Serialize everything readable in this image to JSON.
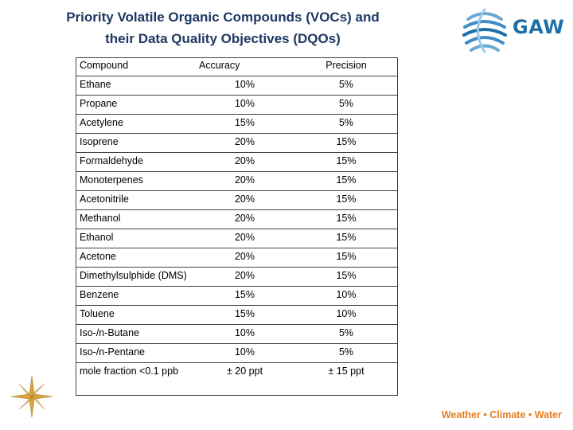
{
  "slide": {
    "title_line1": "Priority Volatile Organic Compounds (VOCs) and",
    "title_line2": "their Data Quality Objectives (DQOs)",
    "logo_text": "GAW",
    "footer": "Weather • Climate • Water",
    "colors": {
      "title": "#1f3864",
      "logo_blue": "#1e6fa8",
      "footer_orange": "#e67e22",
      "star_gold": "#d9a441"
    },
    "icons": [
      "gaw-logo-icon",
      "compass-star-icon"
    ]
  },
  "table": {
    "headers": {
      "compound": "Compound",
      "accuracy": "Accuracy",
      "precision": "Precision"
    },
    "rows": [
      {
        "compound": "Ethane",
        "accuracy": "10%",
        "precision": "5%"
      },
      {
        "compound": "Propane",
        "accuracy": "10%",
        "precision": "5%"
      },
      {
        "compound": "Acetylene",
        "accuracy": "15%",
        "precision": "5%"
      },
      {
        "compound": "Isoprene",
        "accuracy": "20%",
        "precision": "15%"
      },
      {
        "compound": "Formaldehyde",
        "accuracy": "20%",
        "precision": "15%"
      },
      {
        "compound": "Monoterpenes",
        "accuracy": "20%",
        "precision": "15%"
      },
      {
        "compound": "Acetonitrile",
        "accuracy": "20%",
        "precision": "15%"
      },
      {
        "compound": "Methanol",
        "accuracy": "20%",
        "precision": "15%"
      },
      {
        "compound": "Ethanol",
        "accuracy": "20%",
        "precision": "15%"
      },
      {
        "compound": "Acetone",
        "accuracy": "20%",
        "precision": "15%"
      },
      {
        "compound": "Dimethylsulphide (DMS)",
        "accuracy": "20%",
        "precision": "15%"
      },
      {
        "compound": "Benzene",
        "accuracy": "15%",
        "precision": "10%"
      },
      {
        "compound": "Toluene",
        "accuracy": "15%",
        "precision": "10%"
      },
      {
        "compound": "Iso-/n-Butane",
        "accuracy": "10%",
        "precision": "5%"
      },
      {
        "compound": "Iso-/n-Pentane",
        "accuracy": "10%",
        "precision": "5%"
      },
      {
        "compound": "mole fraction <0.1 ppb",
        "accuracy": "± 20 ppt",
        "precision": "± 15 ppt"
      }
    ]
  }
}
